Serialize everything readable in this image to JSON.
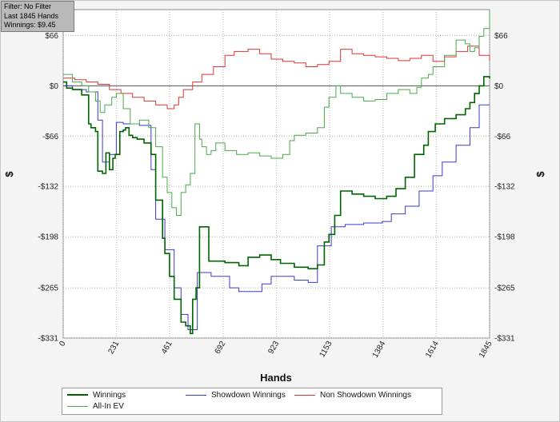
{
  "filter_box": {
    "line1": "Filter: No Filter",
    "line2": "Last  1845 Hands",
    "line3": "Winnings: $9.45"
  },
  "chart_data": {
    "type": "line",
    "xlabel": "Hands",
    "ylabel": "$",
    "xlim": [
      0,
      1845
    ],
    "ylim": [
      -331,
      100
    ],
    "x_ticks": [
      0,
      231,
      461,
      692,
      923,
      1153,
      1384,
      1614,
      1845
    ],
    "y_ticks": [
      66,
      0,
      -66,
      -132,
      -198,
      -265,
      -331
    ],
    "y_tick_labels": [
      "$66",
      "$0",
      "-$66",
      "-$132",
      "-$198",
      "-$265",
      "-$331"
    ],
    "grid": true,
    "legend_position": "bottom",
    "series": [
      {
        "name": "Winnings",
        "color": "#006400",
        "width": 1.6,
        "x": [
          0,
          15,
          40,
          80,
          110,
          120,
          140,
          150,
          170,
          185,
          200,
          215,
          225,
          245,
          260,
          270,
          285,
          300,
          320,
          350,
          380,
          400,
          430,
          440,
          460,
          480,
          510,
          530,
          550,
          560,
          575,
          590,
          630,
          660,
          700,
          760,
          800,
          850,
          900,
          940,
          1000,
          1060,
          1100,
          1130,
          1150,
          1175,
          1200,
          1250,
          1300,
          1350,
          1400,
          1440,
          1480,
          1520,
          1560,
          1580,
          1610,
          1650,
          1700,
          1740,
          1760,
          1780,
          1800,
          1820,
          1845
        ],
        "y": [
          5,
          -3,
          -5,
          -12,
          -50,
          -55,
          -60,
          -112,
          -115,
          -88,
          -110,
          -95,
          -90,
          -60,
          -58,
          -55,
          -65,
          -68,
          -70,
          -75,
          -90,
          -150,
          -200,
          -220,
          -250,
          -280,
          -310,
          -315,
          -325,
          -280,
          -265,
          -185,
          -230,
          -230,
          -232,
          -236,
          -225,
          -222,
          -228,
          -233,
          -238,
          -240,
          -235,
          -205,
          -195,
          -170,
          -138,
          -142,
          -145,
          -148,
          -145,
          -135,
          -120,
          -90,
          -78,
          -60,
          -50,
          -43,
          -38,
          -30,
          -22,
          -10,
          0,
          12,
          9.45
        ]
      },
      {
        "name": "Showdown Winnings",
        "color": "#3a3acc",
        "width": 1.0,
        "x": [
          0,
          40,
          100,
          150,
          170,
          200,
          230,
          260,
          290,
          330,
          380,
          400,
          440,
          480,
          510,
          540,
          560,
          580,
          640,
          720,
          760,
          860,
          900,
          1000,
          1060,
          1100,
          1160,
          1220,
          1300,
          1380,
          1420,
          1480,
          1540,
          1600,
          1640,
          1700,
          1760,
          1800,
          1845
        ],
        "y": [
          0,
          -5,
          -8,
          -45,
          -100,
          -90,
          -48,
          -50,
          -50,
          -52,
          -110,
          -175,
          -215,
          -265,
          -300,
          -320,
          -320,
          -245,
          -250,
          -265,
          -270,
          -260,
          -250,
          -255,
          -258,
          -210,
          -185,
          -182,
          -180,
          -178,
          -168,
          -158,
          -138,
          -118,
          -100,
          -78,
          -55,
          -25,
          -25
        ]
      },
      {
        "name": "Non Showdown Winnings",
        "color": "#dd3333",
        "width": 1.0,
        "x": [
          0,
          50,
          100,
          150,
          200,
          250,
          300,
          350,
          400,
          450,
          480,
          500,
          520,
          560,
          600,
          650,
          700,
          740,
          800,
          850,
          900,
          950,
          1000,
          1050,
          1100,
          1150,
          1200,
          1250,
          1300,
          1350,
          1400,
          1450,
          1500,
          1550,
          1600,
          1650,
          1700,
          1750,
          1800,
          1845
        ],
        "y": [
          10,
          8,
          5,
          2,
          -5,
          -10,
          -15,
          -20,
          -25,
          -30,
          -25,
          -15,
          -5,
          5,
          15,
          25,
          40,
          45,
          48,
          42,
          35,
          32,
          30,
          25,
          28,
          32,
          48,
          42,
          40,
          38,
          36,
          33,
          36,
          40,
          32,
          38,
          45,
          52,
          40,
          33
        ]
      },
      {
        "name": "All-In EV",
        "color": "#4aa84a",
        "width": 1.0,
        "x": [
          0,
          40,
          80,
          110,
          140,
          160,
          180,
          210,
          230,
          260,
          290,
          330,
          370,
          400,
          430,
          450,
          470,
          490,
          510,
          530,
          550,
          570,
          590,
          600,
          620,
          640,
          660,
          700,
          750,
          800,
          850,
          900,
          950,
          980,
          1000,
          1050,
          1100,
          1130,
          1150,
          1180,
          1200,
          1250,
          1300,
          1350,
          1400,
          1450,
          1500,
          1530,
          1550,
          1580,
          1600,
          1650,
          1700,
          1740,
          1760,
          1780,
          1800,
          1820,
          1845
        ],
        "y": [
          15,
          5,
          0,
          -8,
          -20,
          -35,
          -25,
          -15,
          -10,
          -30,
          -50,
          -45,
          -55,
          -80,
          -120,
          -140,
          -160,
          -170,
          -140,
          -130,
          -115,
          -50,
          -70,
          -80,
          -90,
          -85,
          -75,
          -85,
          -90,
          -88,
          -92,
          -95,
          -90,
          -72,
          -65,
          -62,
          -55,
          -28,
          -15,
          0,
          -10,
          -15,
          -20,
          -18,
          -10,
          -5,
          -10,
          -2,
          10,
          15,
          25,
          40,
          60,
          55,
          45,
          50,
          65,
          75,
          100
        ]
      }
    ]
  },
  "legend": {
    "winnings": "Winnings",
    "showdown": "Showdown Winnings",
    "non_showdown": "Non Showdown Winnings",
    "allin_ev": "All-In EV"
  }
}
